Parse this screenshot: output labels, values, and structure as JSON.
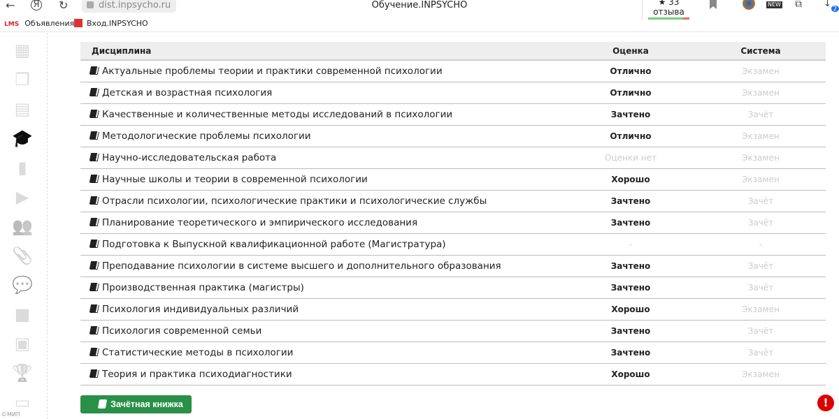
{
  "browser": {
    "url": "dist.inpsycho.ru",
    "title": "Обучение.INPSYCHO",
    "reviews": "★ 33 отзыва",
    "downloads_badge": "2",
    "new_label": "NEW"
  },
  "bookmarks": [
    {
      "icon": "LMS",
      "label": "Объявления"
    },
    {
      "label": "Вход.INPSYCHO"
    }
  ],
  "sidebar": {
    "icons": [
      "grid-icon",
      "documents-icon",
      "calendar-icon",
      "graduation-cap-icon",
      "bookmark-icon",
      "video-file-icon",
      "users-icon",
      "paperclip-icon",
      "chat-icon",
      "folder-icon",
      "archive-icon",
      "trophy-icon",
      "credit-card-icon"
    ],
    "copyright": "©МИП"
  },
  "table": {
    "headers": [
      "Дисциплина",
      "Оценка",
      "Система"
    ],
    "rows": [
      [
        "Актуальные проблемы теории и практики современной психологии",
        "Отлично",
        "Экзамен"
      ],
      [
        "Детская и возрастная психология",
        "Отлично",
        "Экзамен"
      ],
      [
        "Качественные и количественные методы исследований в психологии",
        "Зачтено",
        "Зачёт"
      ],
      [
        "Методологические проблемы психологии",
        "Отлично",
        "Экзамен"
      ],
      [
        "Научно-исследовательская работа",
        "Оценки нет",
        "Экзамен"
      ],
      [
        "Научные школы и теории в современной психологии",
        "Хорошо",
        "Экзамен"
      ],
      [
        "Отрасли психологии, психологические практики и психологические службы",
        "Зачтено",
        "Зачёт"
      ],
      [
        "Планирование теоретического и эмпирического исследования",
        "Зачтено",
        "Зачёт"
      ],
      [
        "Подготовка к Выпускной квалификационной работе (Магистратура)",
        "-",
        "-"
      ],
      [
        "Преподавание психологии в системе высшего и дополнительного образования",
        "Зачтено",
        "Зачёт"
      ],
      [
        "Производственная практика (магистры)",
        "Зачтено",
        "Зачёт"
      ],
      [
        "Психология индивидуальных различий",
        "Хорошо",
        "Экзамен"
      ],
      [
        "Психология современной семьи",
        "Зачтено",
        "Зачёт"
      ],
      [
        "Статистические методы в психологии",
        "Зачтено",
        "Зачёт"
      ],
      [
        "Теория и практика психодиагностики",
        "Хорошо",
        "Экзамен"
      ]
    ]
  },
  "button": {
    "label": "Зачётная книжка"
  },
  "alert": {
    "symbol": "!"
  },
  "colors": {
    "accent": "#2a9048",
    "alert": "#dd0000"
  }
}
